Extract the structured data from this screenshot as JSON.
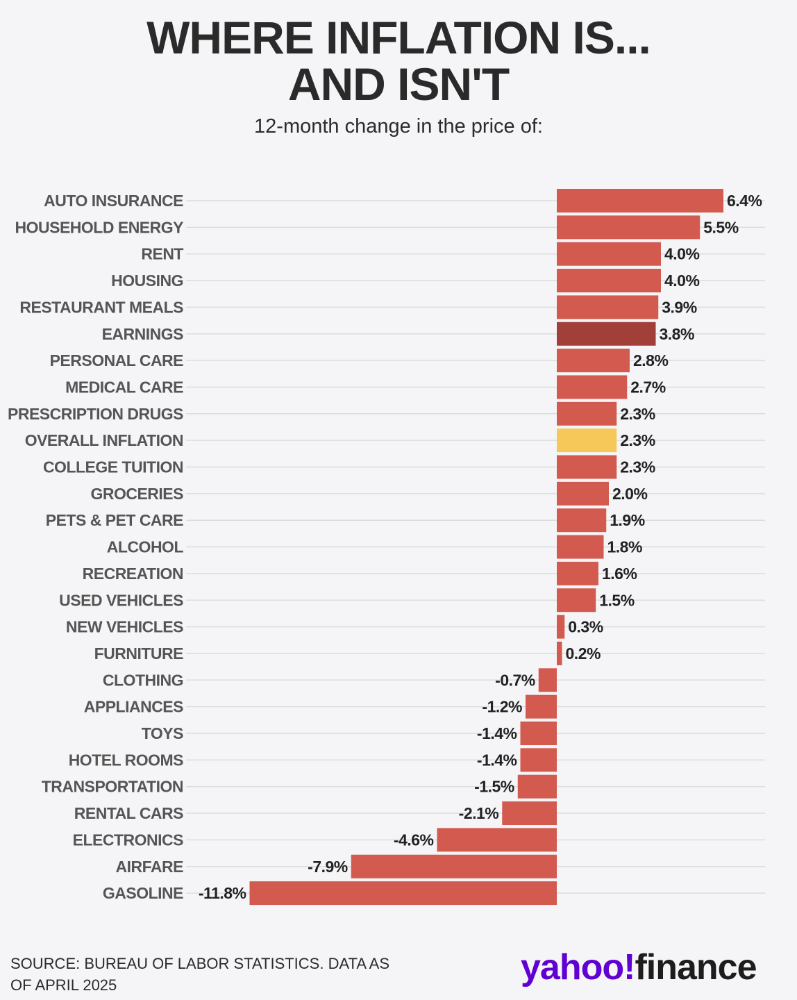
{
  "header": {
    "title_line_1": "WHERE INFLATION IS...",
    "title_line_2": "AND ISN'T",
    "subtitle": "12-month change in the price of:"
  },
  "footer": {
    "source_line_1": "SOURCE: BUREAU OF LABOR STATISTICS. DATA AS",
    "source_line_2": "OF APRIL 2025",
    "brand_yahoo": "yahoo!",
    "brand_finance": "finance"
  },
  "colors": {
    "bar_default": "#d35a4f",
    "bar_earnings": "#a33f39",
    "bar_overall": "#f6c85a",
    "gridline": "#dcdcdf",
    "brand_purple": "#6001d2"
  },
  "chart_data": {
    "type": "bar",
    "orientation": "horizontal",
    "title": "WHERE INFLATION IS... AND ISN'T",
    "subtitle": "12-month change in the price of:",
    "unit": "%",
    "categories": [
      "AUTO INSURANCE",
      "HOUSEHOLD ENERGY",
      "RENT",
      "HOUSING",
      "RESTAURANT MEALS",
      "EARNINGS",
      "PERSONAL CARE",
      "MEDICAL CARE",
      "PRESCRIPTION DRUGS",
      "OVERALL INFLATION",
      "COLLEGE TUITION",
      "GROCERIES",
      "PETS & PET CARE",
      "ALCOHOL",
      "RECREATION",
      "USED VEHICLES",
      "NEW VEHICLES",
      "FURNITURE",
      "CLOTHING",
      "APPLIANCES",
      "TOYS",
      "HOTEL ROOMS",
      "TRANSPORTATION",
      "RENTAL CARS",
      "ELECTRONICS",
      "AIRFARE",
      "GASOLINE"
    ],
    "values": [
      6.4,
      5.5,
      4.0,
      4.0,
      3.9,
      3.8,
      2.8,
      2.7,
      2.3,
      2.3,
      2.3,
      2.0,
      1.9,
      1.8,
      1.6,
      1.5,
      0.3,
      0.2,
      -0.7,
      -1.2,
      -1.4,
      -1.4,
      -1.5,
      -2.1,
      -4.6,
      -7.9,
      -11.8
    ],
    "value_labels": [
      "6.4%",
      "5.5%",
      "4.0%",
      "4.0%",
      "3.9%",
      "3.8%",
      "2.8%",
      "2.7%",
      "2.3%",
      "2.3%",
      "2.3%",
      "2.0%",
      "1.9%",
      "1.8%",
      "1.6%",
      "1.5%",
      "0.3%",
      "0.2%",
      "-0.7%",
      "-1.2%",
      "-1.4%",
      "-1.4%",
      "-1.5%",
      "-2.1%",
      "-4.6%",
      "-7.9%",
      "-11.8%"
    ],
    "highlights": {
      "EARNINGS": "bar_earnings",
      "OVERALL INFLATION": "bar_overall"
    },
    "xlim": [
      -11.8,
      6.4
    ],
    "grid": true,
    "legend": "none"
  }
}
